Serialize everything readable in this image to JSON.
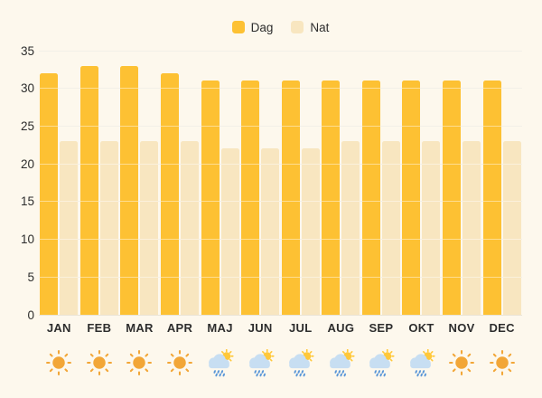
{
  "chart_data": {
    "type": "bar",
    "title": "",
    "categories": [
      "JAN",
      "FEB",
      "MAR",
      "APR",
      "MAJ",
      "JUN",
      "JUL",
      "AUG",
      "SEP",
      "OKT",
      "NOV",
      "DEC"
    ],
    "series": [
      {
        "name": "Dag",
        "color": "#FDC133",
        "values": [
          32,
          33,
          33,
          32,
          31,
          31,
          31,
          31,
          31,
          31,
          31,
          31
        ]
      },
      {
        "name": "Nat",
        "color": "#F8E6C0",
        "values": [
          23,
          23,
          23,
          23,
          22,
          22,
          22,
          23,
          23,
          23,
          23,
          23
        ]
      }
    ],
    "ylim": [
      0,
      35
    ],
    "yticks": [
      0,
      5,
      10,
      15,
      20,
      25,
      30,
      35
    ],
    "grid": true,
    "legend_position": "top-center",
    "weather_icons": [
      "sun",
      "sun",
      "sun",
      "sun",
      "rain-sun",
      "rain-sun",
      "rain-sun",
      "rain-sun",
      "rain-sun",
      "rain-sun",
      "sun",
      "sun"
    ]
  },
  "colors": {
    "background": "#FDF8ED",
    "grid": "#EAE4D6",
    "grid_over_bars": "rgba(255,255,255,0.45)",
    "text": "#2D2D2D",
    "sun": "#F2A637",
    "rain_cloud": "#C7DEF2",
    "rain_drop": "#5B97D8",
    "rain_sun": "#FFC83A"
  }
}
